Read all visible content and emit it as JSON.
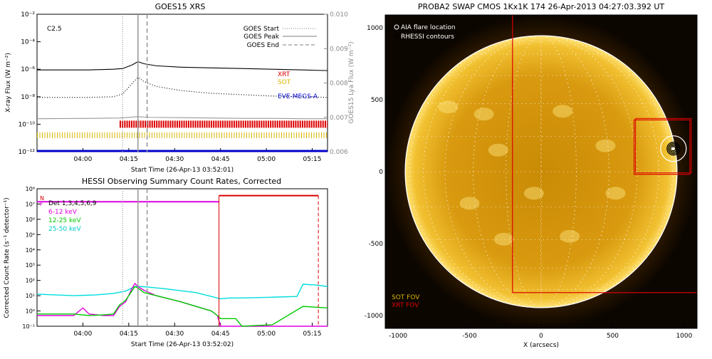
{
  "goes_panel": {
    "title": "GOES15 XRS",
    "flare_class": "C2.5",
    "ylabel_left": "X-ray Flux (W m⁻²)",
    "ylabel_right": "GOES15 Lya Flux (W m⁻²)",
    "xlabel": "Start Time (26-Apr-13 03:52:01)",
    "legend": [
      {
        "label": "GOES Start",
        "style": "dotted"
      },
      {
        "label": "GOES Peak",
        "style": "solid"
      },
      {
        "label": "GOES End",
        "style": "dashed"
      }
    ],
    "instrument_labels": [
      {
        "label": "XRT",
        "color": "#dd0000"
      },
      {
        "label": "SOT",
        "color": "#d8b400"
      },
      {
        "label": "EVE-MEGS-A",
        "color": "#0000cc"
      }
    ]
  },
  "hessi_panel": {
    "title": "HESSI Observing Summary Count Rates, Corrected",
    "ylabel": "Corrected Count Rate (s⁻¹ detector⁻¹)",
    "xlabel": "Start Time (26-Apr-13 03:52:02)",
    "flag_labels": [
      "N",
      "F"
    ],
    "legend": [
      {
        "label": "Det 1,3,4,5,6,9",
        "color": "#000000"
      },
      {
        "label": "6-12 keV",
        "color": "#dd00dd"
      },
      {
        "label": "12-25 keV",
        "color": "#00cc00"
      },
      {
        "label": "25-50 keV",
        "color": "#00dddd"
      }
    ]
  },
  "sun_panel": {
    "title": "PROBA2 SWAP CMOS 1Kx1K 174 26-Apr-2013 04:27:03.392 UT",
    "legend": [
      "AIA flare location",
      "RHESSI contours"
    ],
    "fov_labels": [
      {
        "label": "SOT FOV",
        "color": "#d8b400"
      },
      {
        "label": "XRT FOV",
        "color": "#dd0000"
      }
    ],
    "xlabel": "X (arcsecs)"
  },
  "chart_data": [
    {
      "type": "line",
      "title": "GOES15 XRS",
      "xlabel": "Start Time (26-Apr-13 03:52:01)",
      "ylabel": "X-ray Flux (W m⁻²)",
      "y2label": "GOES15 Lya Flux (W m⁻²)",
      "x_ticks": [
        "04:00",
        "04:15",
        "04:30",
        "04:45",
        "05:00",
        "05:15"
      ],
      "y_ticks": [
        "10⁻¹²",
        "10⁻¹⁰",
        "10⁻⁸",
        "10⁻⁶",
        "10⁻⁴",
        "10⁻²"
      ],
      "y2_ticks": [
        "0.006",
        "0.007",
        "0.008",
        "0.009",
        "0.010"
      ],
      "xlim_minutes": [
        -7,
        88
      ],
      "ylim_log": [
        -12,
        -2
      ],
      "y2lim": [
        0.006,
        0.01
      ],
      "y_scale": "log",
      "markers_minutes": {
        "start": 21,
        "peak": 26,
        "end": 29
      },
      "series": [
        {
          "name": "GOES XRS long",
          "color": "#000000",
          "style": "solid",
          "x": [
            -7,
            10,
            18,
            21,
            24,
            26,
            28,
            32,
            40,
            50,
            60,
            70,
            80,
            88
          ],
          "log_y": [
            -6.05,
            -6.05,
            -6.0,
            -5.95,
            -5.7,
            -5.45,
            -5.6,
            -5.75,
            -5.85,
            -5.9,
            -5.95,
            -6.0,
            -6.05,
            -6.1
          ]
        },
        {
          "name": "GOES XRS short",
          "color": "#000000",
          "style": "dotted",
          "x": [
            -7,
            10,
            18,
            21,
            24,
            26,
            28,
            32,
            40,
            50,
            60,
            70,
            80,
            88
          ],
          "log_y": [
            -8.05,
            -8.05,
            -8.0,
            -7.8,
            -7.05,
            -6.6,
            -6.9,
            -7.25,
            -7.55,
            -7.75,
            -7.85,
            -7.95,
            -8.0,
            -8.05
          ]
        },
        {
          "name": "GOES15 Lya",
          "color": "#999999",
          "style": "solid",
          "axis": "right",
          "x": [
            -7,
            10,
            20,
            26,
            30,
            40,
            50,
            60,
            70,
            80,
            88
          ],
          "y": [
            0.00696,
            0.00697,
            0.00698,
            0.00702,
            0.007,
            0.00699,
            0.00698,
            0.00697,
            0.00697,
            0.00696,
            0.00696
          ]
        }
      ],
      "coverage_bars": [
        {
          "name": "XRT",
          "color": "#dd0000",
          "log_y": -10.0,
          "start": 20,
          "end": 88
        },
        {
          "name": "SOT",
          "color": "#d8b400",
          "log_y": -10.8,
          "start": -7,
          "end": 88
        },
        {
          "name": "EVE-MEGS-A",
          "color": "#0000cc",
          "log_y": -11.95,
          "start": -7,
          "end": 88
        }
      ]
    },
    {
      "type": "line",
      "title": "HESSI Observing Summary Count Rates, Corrected",
      "xlabel": "Start Time (26-Apr-13 03:52:02)",
      "ylabel": "Corrected Count Rate (s⁻¹ detector⁻¹)",
      "x_ticks": [
        "04:00",
        "04:15",
        "04:30",
        "04:45",
        "05:00",
        "05:15"
      ],
      "y_ticks": [
        "10⁻¹",
        "10⁰",
        "10¹",
        "10²",
        "10³",
        "10⁴",
        "10⁵",
        "10⁶",
        "10⁷",
        "10⁸"
      ],
      "xlim_minutes": [
        -7,
        88
      ],
      "ylim_log": [
        -1,
        8
      ],
      "y_scale": "log",
      "markers_minutes": {
        "start": 21,
        "peak": 26,
        "end": 29
      },
      "series": [
        {
          "name": "25-50 keV",
          "color": "#00dddd",
          "x": [
            -7,
            5,
            12,
            18,
            22,
            25,
            27,
            30,
            35,
            45,
            53,
            56,
            60,
            70,
            78,
            80,
            84,
            88
          ],
          "log_y": [
            1.1,
            1.0,
            1.05,
            1.15,
            1.3,
            1.6,
            1.6,
            1.55,
            1.45,
            1.2,
            0.8,
            0.85,
            0.85,
            0.9,
            0.95,
            1.75,
            1.7,
            1.6
          ]
        },
        {
          "name": "6-12 keV",
          "color": "#dd00dd",
          "x": [
            -7,
            5,
            8,
            10,
            15,
            18,
            20,
            22,
            24,
            25,
            26,
            28,
            32,
            40,
            50,
            52,
            53,
            88
          ],
          "log_y": [
            -0.3,
            -0.3,
            0.2,
            -0.2,
            -0.3,
            -0.3,
            0.3,
            0.6,
            1.45,
            1.8,
            1.6,
            1.35,
            1.0,
            0.6,
            0.0,
            -0.3,
            -1.0,
            -1.0
          ]
        },
        {
          "name": "12-25 keV",
          "color": "#00cc00",
          "x": [
            -7,
            5,
            10,
            15,
            18,
            20,
            22,
            24,
            25,
            26,
            28,
            32,
            40,
            50,
            52,
            53,
            58,
            60,
            70,
            80,
            88
          ],
          "log_y": [
            -0.2,
            -0.2,
            -0.3,
            -0.25,
            -0.2,
            0.4,
            0.7,
            1.3,
            1.6,
            1.5,
            1.2,
            1.0,
            0.6,
            0.0,
            -0.3,
            -0.5,
            -0.5,
            -1.0,
            -0.9,
            0.3,
            0.2
          ]
        }
      ],
      "flag_bars": [
        {
          "name": "N",
          "color": "#dd0000",
          "log_y": 7.55,
          "start": 52.5,
          "end": 85
        },
        {
          "name": "F",
          "color": "#dd00dd",
          "log_y": 7.15,
          "start": -7,
          "end": 52.5
        }
      ]
    },
    {
      "type": "image",
      "title": "PROBA2 SWAP CMOS 1Kx1K 174 26-Apr-2013 04:27:03.392 UT",
      "xlabel": "X (arcsecs)",
      "x_ticks": [
        -1000,
        -500,
        0,
        500,
        1000
      ],
      "y_ticks": [
        -1000,
        -500,
        0,
        500,
        1000
      ],
      "xlim": [
        -1090,
        1090
      ],
      "ylim": [
        -1090,
        1090
      ],
      "solar_radius_arcsec": 950,
      "flare_location": [
        925,
        160
      ],
      "xrt_fov": {
        "x": [
          -200,
          1100
        ],
        "y": [
          -850,
          1100
        ]
      },
      "sot_fov": {
        "x": [
          650,
          1040
        ],
        "y": [
          -20,
          360
        ]
      },
      "xrt_small_fov": {
        "x": [
          660,
          1050
        ],
        "y": [
          -10,
          370
        ]
      }
    }
  ]
}
